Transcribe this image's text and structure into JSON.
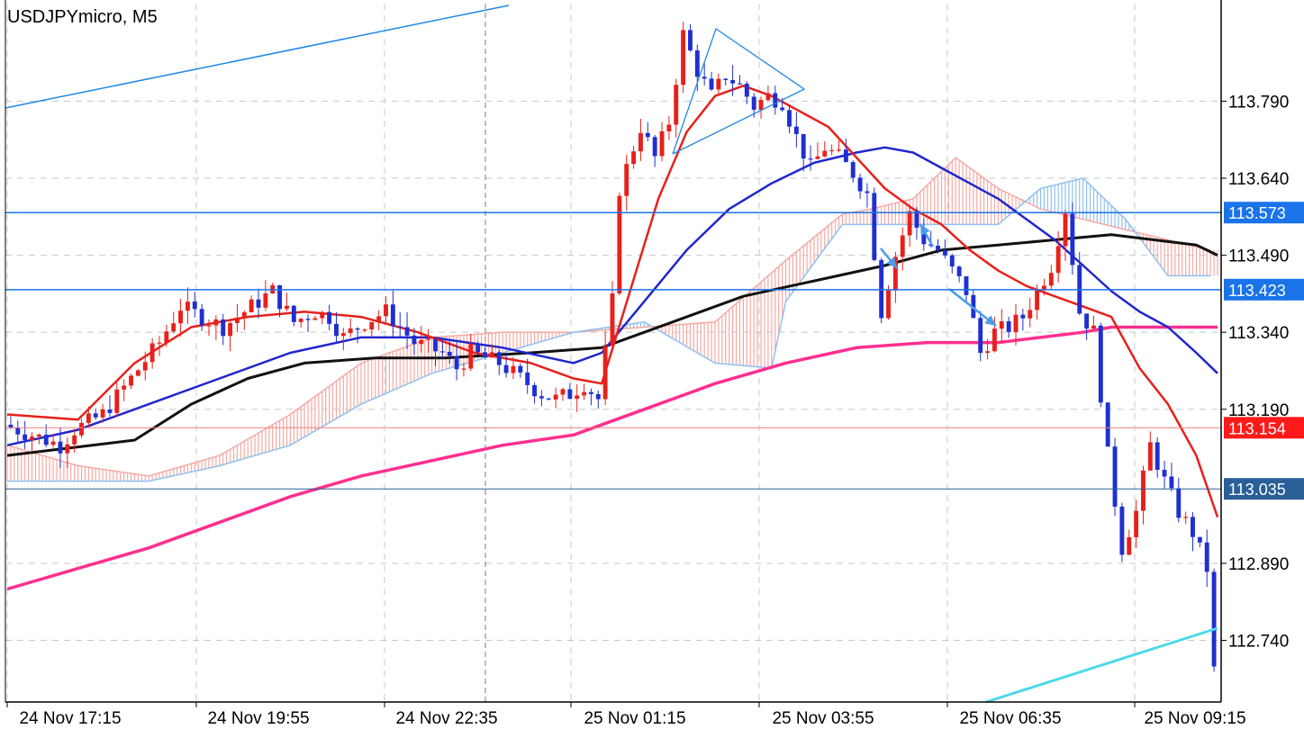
{
  "header": {
    "symbol_title": "USDJPYmicro, M5"
  },
  "colors": {
    "grid": "#c8c8c8",
    "axis": "#000000",
    "bull_candle": "#e8201b",
    "bear_candle": "#1f2fd0",
    "ema_fast": "#e8201b",
    "ema_mid": "#2026cc",
    "sma_slow": "#111111",
    "sma_long": "#ff2f8e",
    "cloud_bear": "#f6a9a3",
    "cloud_bull": "#8fc0f0",
    "hline_blue": "#1a73e8",
    "hline_red": "#f08080",
    "hline_navy": "#2a5f97",
    "trendline_top": "#1e88e5",
    "trendline_bottom": "#4dd9e8",
    "arrow": "#4a9de8"
  },
  "chart_data": {
    "type": "candlestick",
    "title": "USDJPYmicro, M5",
    "ylim": [
      112.62,
      113.98
    ],
    "y_ticks": [
      "113.790",
      "113.640",
      "113.490",
      "113.340",
      "113.190",
      "112.890",
      "112.740"
    ],
    "x_ticks": [
      "24 Nov 17:15",
      "24 Nov 19:55",
      "24 Nov 22:35",
      "25 Nov 01:15",
      "25 Nov 03:55",
      "25 Nov 06:35",
      "25 Nov 09:15"
    ],
    "price_labels": [
      {
        "text": "113.573",
        "value": 113.573,
        "style": "blue"
      },
      {
        "text": "113.423",
        "value": 113.423,
        "style": "blue"
      },
      {
        "text": "113.154",
        "value": 113.154,
        "style": "red"
      },
      {
        "text": "113.035",
        "value": 113.035,
        "style": "navy"
      }
    ],
    "close_path": [
      [
        0,
        113.16
      ],
      [
        4,
        113.14
      ],
      [
        8,
        113.12
      ],
      [
        10,
        113.15
      ],
      [
        14,
        113.18
      ],
      [
        18,
        113.25
      ],
      [
        22,
        113.32
      ],
      [
        25,
        113.39
      ],
      [
        28,
        113.37
      ],
      [
        31,
        113.35
      ],
      [
        34,
        113.38
      ],
      [
        38,
        113.42
      ],
      [
        41,
        113.36
      ],
      [
        44,
        113.38
      ],
      [
        46,
        113.37
      ],
      [
        48,
        113.33
      ],
      [
        51,
        113.36
      ],
      [
        54,
        113.38
      ],
      [
        58,
        113.32
      ],
      [
        62,
        113.3
      ],
      [
        64,
        113.27
      ],
      [
        66,
        113.3
      ],
      [
        70,
        113.28
      ],
      [
        74,
        113.24
      ],
      [
        76,
        113.22
      ],
      [
        78,
        113.21
      ],
      [
        80,
        113.22
      ],
      [
        82,
        113.24
      ],
      [
        84,
        113.21
      ],
      [
        85,
        113.3
      ],
      [
        86,
        113.4
      ],
      [
        87,
        113.62
      ],
      [
        88,
        113.66
      ],
      [
        90,
        113.74
      ],
      [
        92,
        113.68
      ],
      [
        94,
        113.75
      ],
      [
        96,
        113.92
      ],
      [
        98,
        113.85
      ],
      [
        100,
        113.8
      ],
      [
        102,
        113.84
      ],
      [
        104,
        113.82
      ],
      [
        106,
        113.78
      ],
      [
        108,
        113.8
      ],
      [
        110,
        113.79
      ],
      [
        112,
        113.72
      ],
      [
        114,
        113.66
      ],
      [
        116,
        113.7
      ],
      [
        118,
        113.68
      ],
      [
        120,
        113.65
      ],
      [
        122,
        113.61
      ],
      [
        124,
        113.38
      ],
      [
        126,
        113.49
      ],
      [
        128,
        113.57
      ],
      [
        130,
        113.52
      ],
      [
        132,
        113.5
      ],
      [
        134,
        113.46
      ],
      [
        136,
        113.42
      ],
      [
        138,
        113.3
      ],
      [
        140,
        113.34
      ],
      [
        142,
        113.35
      ],
      [
        144,
        113.37
      ],
      [
        146,
        113.42
      ],
      [
        148,
        113.47
      ],
      [
        150,
        113.58
      ],
      [
        152,
        113.38
      ],
      [
        154,
        113.34
      ],
      [
        156,
        113.1
      ],
      [
        158,
        112.92
      ],
      [
        160,
        112.99
      ],
      [
        162,
        113.12
      ],
      [
        164,
        113.05
      ],
      [
        166,
        112.99
      ],
      [
        168,
        112.95
      ],
      [
        170,
        112.88
      ],
      [
        171,
        112.68
      ]
    ],
    "series": [
      {
        "name": "",
        "role": "ema_fast",
        "values": [
          [
            0,
            113.18
          ],
          [
            10,
            113.17
          ],
          [
            18,
            113.28
          ],
          [
            26,
            113.35
          ],
          [
            34,
            113.37
          ],
          [
            42,
            113.38
          ],
          [
            50,
            113.37
          ],
          [
            58,
            113.34
          ],
          [
            66,
            113.3
          ],
          [
            74,
            113.28
          ],
          [
            80,
            113.25
          ],
          [
            84,
            113.24
          ],
          [
            88,
            113.42
          ],
          [
            92,
            113.6
          ],
          [
            96,
            113.73
          ],
          [
            100,
            113.8
          ],
          [
            104,
            113.82
          ],
          [
            108,
            113.8
          ],
          [
            112,
            113.77
          ],
          [
            116,
            113.74
          ],
          [
            120,
            113.68
          ],
          [
            124,
            113.62
          ],
          [
            128,
            113.58
          ],
          [
            132,
            113.55
          ],
          [
            136,
            113.5
          ],
          [
            140,
            113.46
          ],
          [
            144,
            113.43
          ],
          [
            148,
            113.41
          ],
          [
            152,
            113.39
          ],
          [
            156,
            113.37
          ],
          [
            160,
            113.27
          ],
          [
            164,
            113.2
          ],
          [
            168,
            113.1
          ],
          [
            171,
            112.98
          ]
        ]
      },
      {
        "name": "",
        "role": "ema_mid",
        "values": [
          [
            0,
            113.12
          ],
          [
            10,
            113.15
          ],
          [
            20,
            113.2
          ],
          [
            30,
            113.25
          ],
          [
            40,
            113.3
          ],
          [
            50,
            113.33
          ],
          [
            60,
            113.33
          ],
          [
            70,
            113.31
          ],
          [
            80,
            113.28
          ],
          [
            84,
            113.3
          ],
          [
            90,
            113.4
          ],
          [
            96,
            113.5
          ],
          [
            102,
            113.58
          ],
          [
            108,
            113.63
          ],
          [
            114,
            113.67
          ],
          [
            120,
            113.69
          ],
          [
            124,
            113.7
          ],
          [
            128,
            113.69
          ],
          [
            132,
            113.66
          ],
          [
            136,
            113.63
          ],
          [
            140,
            113.6
          ],
          [
            144,
            113.56
          ],
          [
            148,
            113.52
          ],
          [
            152,
            113.47
          ],
          [
            156,
            113.42
          ],
          [
            160,
            113.38
          ],
          [
            164,
            113.35
          ],
          [
            168,
            113.3
          ],
          [
            171,
            113.26
          ]
        ]
      },
      {
        "name": "",
        "role": "sma_slow",
        "values": [
          [
            0,
            113.1
          ],
          [
            6,
            113.11
          ],
          [
            12,
            113.12
          ],
          [
            18,
            113.13
          ],
          [
            26,
            113.2
          ],
          [
            34,
            113.25
          ],
          [
            42,
            113.28
          ],
          [
            52,
            113.29
          ],
          [
            62,
            113.29
          ],
          [
            74,
            113.3
          ],
          [
            84,
            113.31
          ],
          [
            94,
            113.36
          ],
          [
            104,
            113.41
          ],
          [
            114,
            113.44
          ],
          [
            124,
            113.47
          ],
          [
            132,
            113.5
          ],
          [
            140,
            113.51
          ],
          [
            148,
            113.52
          ],
          [
            156,
            113.53
          ],
          [
            162,
            113.52
          ],
          [
            168,
            113.51
          ],
          [
            171,
            113.49
          ]
        ]
      },
      {
        "name": "",
        "role": "sma_long",
        "values": [
          [
            0,
            112.84
          ],
          [
            10,
            112.88
          ],
          [
            20,
            112.92
          ],
          [
            30,
            112.97
          ],
          [
            40,
            113.02
          ],
          [
            50,
            113.06
          ],
          [
            60,
            113.09
          ],
          [
            70,
            113.12
          ],
          [
            80,
            113.14
          ],
          [
            90,
            113.19
          ],
          [
            100,
            113.24
          ],
          [
            110,
            113.28
          ],
          [
            120,
            113.31
          ],
          [
            130,
            113.32
          ],
          [
            140,
            113.32
          ],
          [
            146,
            113.33
          ],
          [
            152,
            113.34
          ],
          [
            156,
            113.35
          ],
          [
            160,
            113.35
          ],
          [
            171,
            113.35
          ]
        ]
      },
      {
        "name": "",
        "role": "cloud_a",
        "values": [
          [
            0,
            113.12
          ],
          [
            10,
            113.08
          ],
          [
            20,
            113.06
          ],
          [
            30,
            113.1
          ],
          [
            40,
            113.18
          ],
          [
            50,
            113.28
          ],
          [
            60,
            113.33
          ],
          [
            70,
            113.34
          ],
          [
            80,
            113.34
          ],
          [
            90,
            113.35
          ],
          [
            100,
            113.36
          ],
          [
            110,
            113.48
          ],
          [
            118,
            113.57
          ],
          [
            122,
            113.58
          ],
          [
            128,
            113.6
          ],
          [
            134,
            113.68
          ],
          [
            140,
            113.62
          ],
          [
            146,
            113.58
          ],
          [
            152,
            113.56
          ],
          [
            158,
            113.54
          ],
          [
            164,
            113.52
          ],
          [
            170,
            113.5
          ]
        ]
      },
      {
        "name": "",
        "role": "cloud_b",
        "values": [
          [
            0,
            113.05
          ],
          [
            10,
            113.05
          ],
          [
            20,
            113.05
          ],
          [
            30,
            113.08
          ],
          [
            40,
            113.12
          ],
          [
            50,
            113.2
          ],
          [
            60,
            113.26
          ],
          [
            70,
            113.3
          ],
          [
            80,
            113.34
          ],
          [
            90,
            113.36
          ],
          [
            100,
            113.28
          ],
          [
            108,
            113.27
          ],
          [
            110,
            113.4
          ],
          [
            118,
            113.55
          ],
          [
            122,
            113.55
          ],
          [
            130,
            113.55
          ],
          [
            140,
            113.55
          ],
          [
            146,
            113.62
          ],
          [
            152,
            113.64
          ],
          [
            158,
            113.56
          ],
          [
            164,
            113.45
          ],
          [
            170,
            113.45
          ]
        ]
      }
    ],
    "grid": true,
    "legend": "none"
  }
}
